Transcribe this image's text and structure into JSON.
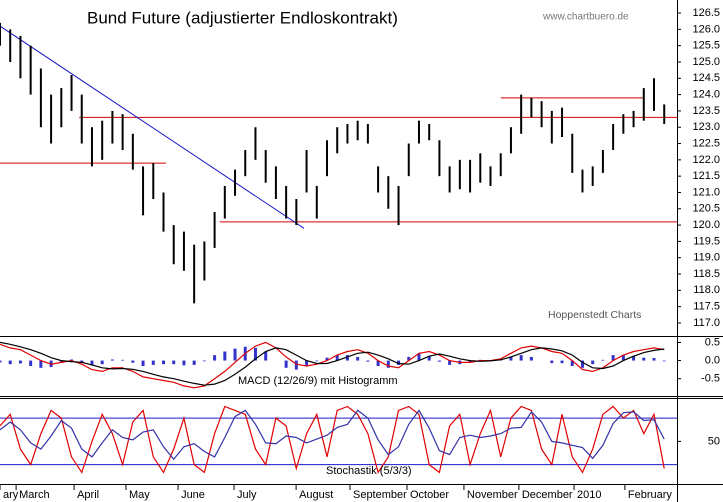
{
  "chart_data": {
    "type": "ohlc",
    "title": "Bund Future (adjustierter Endloskontrakt)",
    "source": "www.chartbuero.de",
    "credit": "Hoppenstedt Charts",
    "color": "#000000",
    "x": [
      0,
      4,
      8,
      12,
      16,
      20,
      24,
      28,
      32,
      36,
      40,
      44,
      48,
      52,
      56,
      60,
      64,
      68,
      72,
      76,
      80,
      84,
      88,
      92,
      96,
      100,
      104,
      108,
      112,
      116,
      120,
      124,
      128,
      132,
      136,
      140,
      144,
      148,
      152,
      156,
      160,
      164,
      168,
      172,
      176,
      180,
      184,
      188,
      192,
      196,
      200,
      204,
      208,
      212,
      216,
      220,
      224,
      228,
      232,
      236,
      240,
      244,
      248,
      252,
      256,
      260
    ],
    "high": [
      126.2,
      126.0,
      125.8,
      125.5,
      124.8,
      124.0,
      124.2,
      124.6,
      124.0,
      123.0,
      123.2,
      123.5,
      123.4,
      122.8,
      121.8,
      121.9,
      121.0,
      120.0,
      119.8,
      119.4,
      119.5,
      120.4,
      121.2,
      121.7,
      122.3,
      123.0,
      122.3,
      121.8,
      121.2,
      120.8,
      122.3,
      121.2,
      122.6,
      123.0,
      123.1,
      123.2,
      123.1,
      121.8,
      121.5,
      121.2,
      122.5,
      123.2,
      123.1,
      122.6,
      121.8,
      122.0,
      122.0,
      122.2,
      121.8,
      122.2,
      123.0,
      124.0,
      123.9,
      123.8,
      123.5,
      123.6,
      122.8,
      121.7,
      121.8,
      122.3,
      123.1,
      123.4,
      123.5,
      124.2,
      124.5,
      123.7
    ],
    "low": [
      125.5,
      125.0,
      124.5,
      124.0,
      123.0,
      122.5,
      123.0,
      123.5,
      122.5,
      121.8,
      122.0,
      122.5,
      122.3,
      121.7,
      120.3,
      120.8,
      119.8,
      118.8,
      118.6,
      117.6,
      118.3,
      119.3,
      120.2,
      120.9,
      121.5,
      122.0,
      121.3,
      120.8,
      120.2,
      120.0,
      121.0,
      120.2,
      121.5,
      122.2,
      122.5,
      122.6,
      122.5,
      121.0,
      120.5,
      120.0,
      121.5,
      122.5,
      122.6,
      121.5,
      121.0,
      121.1,
      121.0,
      121.3,
      121.2,
      121.5,
      122.2,
      122.8,
      123.3,
      123.0,
      122.5,
      122.7,
      121.6,
      121.0,
      121.2,
      121.6,
      122.3,
      122.8,
      123.0,
      123.2,
      123.5,
      123.1
    ],
    "xlim": [
      0,
      265
    ],
    "xticks": [
      {
        "value": 0,
        "label": "ary"
      },
      {
        "value": 6.3,
        "label": "March"
      },
      {
        "value": 29,
        "label": "April"
      },
      {
        "value": 49.3,
        "label": "May"
      },
      {
        "value": 69.7,
        "label": "June"
      },
      {
        "value": 91.6,
        "label": "July"
      },
      {
        "value": 115.9,
        "label": "August"
      },
      {
        "value": 137,
        "label": "September"
      },
      {
        "value": 159.3,
        "label": "October"
      },
      {
        "value": 181.6,
        "label": "November"
      },
      {
        "value": 203.1,
        "label": "December"
      },
      {
        "value": 224.7,
        "label": "2010"
      },
      {
        "value": 244.6,
        "label": "February"
      }
    ],
    "ylim": [
      116.6,
      126.9
    ],
    "yticks": [
      126.5,
      {
        "value": 126,
        "label": "126.0"
      },
      125.5,
      {
        "value": 125,
        "label": "125.0"
      },
      124.5,
      {
        "value": 124,
        "label": "124.0"
      },
      123.5,
      {
        "value": 123,
        "label": "123.0"
      },
      122.5,
      {
        "value": 122,
        "label": "122.0"
      },
      121.5,
      {
        "value": 121,
        "label": "121.0"
      },
      120.5,
      {
        "value": 120,
        "label": "120.0"
      },
      119.5,
      {
        "value": 119,
        "label": "119.0"
      },
      118.5,
      {
        "value": 118,
        "label": "118.0"
      },
      117.5,
      {
        "value": 117,
        "label": "117.0"
      }
    ],
    "lines": [
      {
        "color": "#d40000",
        "x": [
          31,
          265
        ],
        "y": [
          123.3,
          123.3
        ]
      },
      {
        "color": "#d40000",
        "x": [
          0,
          65
        ],
        "y": [
          121.9,
          121.9
        ]
      },
      {
        "color": "#d40000",
        "x": [
          86,
          265
        ],
        "y": [
          120.1,
          120.1
        ]
      },
      {
        "color": "#d40000",
        "x": [
          196,
          252
        ],
        "y": [
          123.9,
          123.9
        ]
      },
      {
        "color": "#1a1acc",
        "x": [
          0,
          119
        ],
        "y": [
          126.1,
          119.9
        ]
      }
    ],
    "macd": {
      "label": "MACD (12/26/9) mit Histogramm",
      "ylim": [
        -0.95,
        0.65
      ],
      "yticks": [
        0.5,
        {
          "value": 0,
          "label": "0.0"
        },
        -0.5
      ],
      "series": [
        {
          "color": "#e00000",
          "values": [
            0.45,
            0.35,
            0.3,
            0.15,
            0.0,
            -0.1,
            -0.05,
            0.0,
            -0.1,
            -0.25,
            -0.3,
            -0.2,
            -0.2,
            -0.3,
            -0.45,
            -0.5,
            -0.55,
            -0.6,
            -0.7,
            -0.75,
            -0.7,
            -0.5,
            -0.3,
            -0.05,
            0.2,
            0.4,
            0.5,
            0.35,
            0.1,
            -0.1,
            -0.15,
            -0.1,
            0.0,
            0.15,
            0.25,
            0.3,
            0.2,
            0.0,
            -0.15,
            -0.2,
            0.0,
            0.2,
            0.25,
            0.15,
            0.0,
            -0.05,
            -0.05,
            0.0,
            0.0,
            0.05,
            0.2,
            0.35,
            0.4,
            0.35,
            0.25,
            0.2,
            0.0,
            -0.25,
            -0.3,
            -0.2,
            0.0,
            0.15,
            0.25,
            0.3,
            0.35,
            0.3
          ]
        },
        {
          "color": "#000000",
          "values": [
            0.5,
            0.45,
            0.38,
            0.3,
            0.2,
            0.08,
            0.0,
            -0.03,
            -0.05,
            -0.12,
            -0.2,
            -0.23,
            -0.22,
            -0.24,
            -0.3,
            -0.38,
            -0.45,
            -0.5,
            -0.57,
            -0.63,
            -0.68,
            -0.65,
            -0.55,
            -0.38,
            -0.18,
            0.05,
            0.25,
            0.35,
            0.3,
            0.15,
            0.0,
            -0.08,
            -0.08,
            0.0,
            0.1,
            0.2,
            0.23,
            0.15,
            0.05,
            -0.08,
            -0.1,
            0.0,
            0.12,
            0.18,
            0.12,
            0.05,
            0.0,
            -0.02,
            -0.01,
            0.02,
            0.1,
            0.2,
            0.3,
            0.35,
            0.32,
            0.27,
            0.15,
            -0.05,
            -0.2,
            -0.22,
            -0.15,
            0.0,
            0.12,
            0.22,
            0.28,
            0.32
          ]
        }
      ],
      "histogram": {
        "color": "#3333cc",
        "values": [
          -0.05,
          -0.1,
          -0.08,
          -0.15,
          -0.2,
          -0.18,
          -0.05,
          0.03,
          -0.05,
          -0.13,
          -0.1,
          0.03,
          0.02,
          -0.06,
          -0.15,
          -0.12,
          -0.1,
          -0.1,
          -0.13,
          -0.12,
          -0.02,
          0.15,
          0.25,
          0.33,
          0.38,
          0.35,
          0.25,
          0,
          -0.2,
          -0.25,
          -0.15,
          -0.02,
          0.08,
          0.15,
          0.15,
          0.1,
          -0.03,
          -0.15,
          -0.2,
          -0.12,
          0.1,
          0.2,
          0.13,
          -0.03,
          -0.12,
          -0.1,
          -0.05,
          0.02,
          0.01,
          0.03,
          0.1,
          0.15,
          0.1,
          0,
          -0.07,
          -0.07,
          -0.15,
          -0.2,
          -0.1,
          0.02,
          0.15,
          0.15,
          0.13,
          0.08,
          0.07,
          -0.02
        ]
      }
    },
    "stochastic": {
      "label": "Stochastik (5/3/3)",
      "ylim": [
        -5,
        106
      ],
      "yticks": [
        50
      ],
      "levels": [
        20,
        80
      ],
      "level_color": "#1a1acc",
      "series": [
        {
          "color": "#e00000",
          "values": [
            70,
            85,
            40,
            20,
            60,
            90,
            80,
            30,
            10,
            50,
            85,
            60,
            20,
            75,
            90,
            30,
            10,
            40,
            80,
            20,
            10,
            60,
            95,
            90,
            85,
            40,
            20,
            80,
            70,
            15,
            60,
            85,
            30,
            90,
            95,
            85,
            60,
            10,
            30,
            90,
            95,
            85,
            20,
            10,
            70,
            85,
            20,
            60,
            90,
            30,
            80,
            95,
            90,
            40,
            20,
            85,
            30,
            10,
            40,
            85,
            95,
            80,
            90,
            60,
            85,
            15
          ]
        },
        {
          "color": "#3333aa",
          "values": [
            65,
            75,
            65,
            48,
            40,
            57,
            77,
            67,
            40,
            30,
            48,
            65,
            55,
            52,
            62,
            65,
            43,
            27,
            43,
            47,
            37,
            30,
            55,
            82,
            90,
            72,
            48,
            47,
            57,
            55,
            48,
            53,
            58,
            68,
            72,
            90,
            80,
            52,
            33,
            43,
            72,
            90,
            67,
            38,
            33,
            55,
            58,
            55,
            57,
            60,
            67,
            68,
            88,
            75,
            50,
            48,
            45,
            42,
            28,
            45,
            73,
            87,
            88,
            77,
            78,
            53
          ]
        }
      ]
    }
  }
}
